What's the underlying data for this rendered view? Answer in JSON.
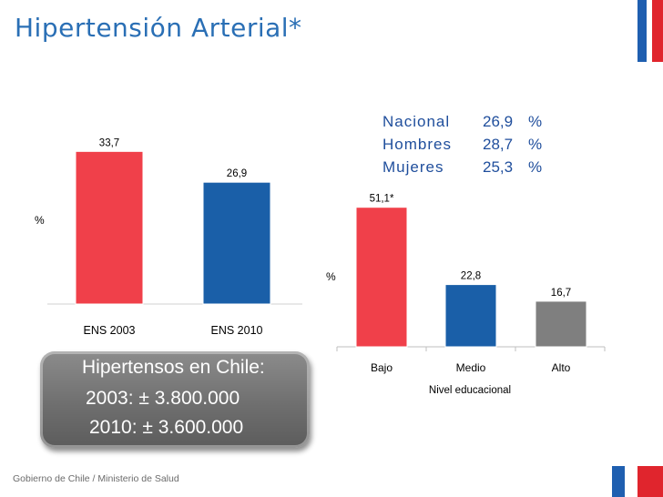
{
  "slide": {
    "title": "Hipertensión Arterial*",
    "footer": "Gobierno de Chile / Ministerio de Salud"
  },
  "colors": {
    "title_blue": "#2a6fb5",
    "red": "#f0404a",
    "blue": "#1a5fa8",
    "gray": "#7f7f7f",
    "flag_blue": "#1f5fb0",
    "flag_red": "#e0252d"
  },
  "stats": [
    {
      "label": "Nacional",
      "value": "26,9",
      "unit": "%"
    },
    {
      "label": "Hombres",
      "value": "28,7",
      "unit": "%"
    },
    {
      "label": "Mujeres",
      "value": "25,3",
      "unit": "%"
    }
  ],
  "callout": {
    "title": "Hipertensos en Chile:",
    "line1": "2003: ±  3.800.000",
    "line2": "2010: ±  3.600.000"
  },
  "chart_data": [
    {
      "type": "bar",
      "categories": [
        "ENS 2003",
        "ENS 2010"
      ],
      "values": [
        33.7,
        26.9
      ],
      "value_labels": [
        "33,7",
        "26,9"
      ],
      "ylabel": "%",
      "ylim": [
        0,
        40
      ],
      "colors": [
        "#f0404a",
        "#1a5fa8"
      ],
      "grid": false
    },
    {
      "type": "bar",
      "categories": [
        "Bajo",
        "Medio",
        "Alto"
      ],
      "values": [
        51.1,
        22.8,
        16.7
      ],
      "value_labels": [
        "51,1*",
        "22,8",
        "16,7"
      ],
      "xlabel": "Nivel educacional",
      "ylabel": "%",
      "ylim": [
        0,
        60
      ],
      "colors": [
        "#f0404a",
        "#1a5fa8",
        "#7f7f7f"
      ],
      "grid": false
    }
  ]
}
